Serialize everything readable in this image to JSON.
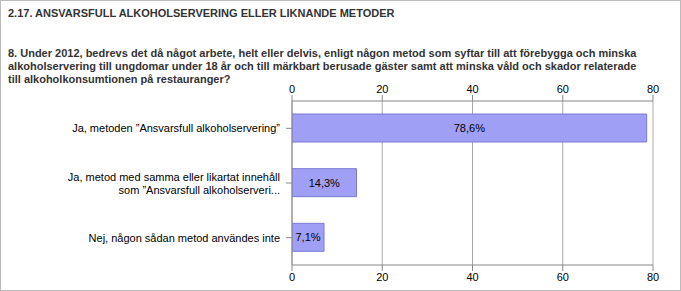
{
  "chart_data": {
    "type": "bar",
    "orientation": "horizontal",
    "title": "2.17. ANSVARSFULL ALKOHOLSERVERING ELLER LIKNANDE METODER",
    "subtitle": "8. Under 2012, bedrevs det då något arbete, helt eller delvis, enligt någon metod som syftar till att förebygga och minska alkoholservering till ungdomar under 18 år och till märkbart berusade gäster samt att minska våld och skador relaterade till alkoholkonsumtionen på restauranger?",
    "categories": [
      "Ja, metoden ”Ansvarsfull alkoholservering”",
      "Ja, metod med samma eller likartat innehåll som ”Ansvarsfull alkoholserveri...",
      "Nej, någon sådan metod användes inte"
    ],
    "values": [
      78.6,
      14.3,
      7.1
    ],
    "value_labels": [
      "78,6%",
      "14,3%",
      "7,1%"
    ],
    "data_labels": true,
    "color": "#9f9ff5",
    "xlim": [
      0,
      80
    ],
    "xticks": [
      0,
      20,
      40,
      60,
      80
    ],
    "grid": true
  }
}
